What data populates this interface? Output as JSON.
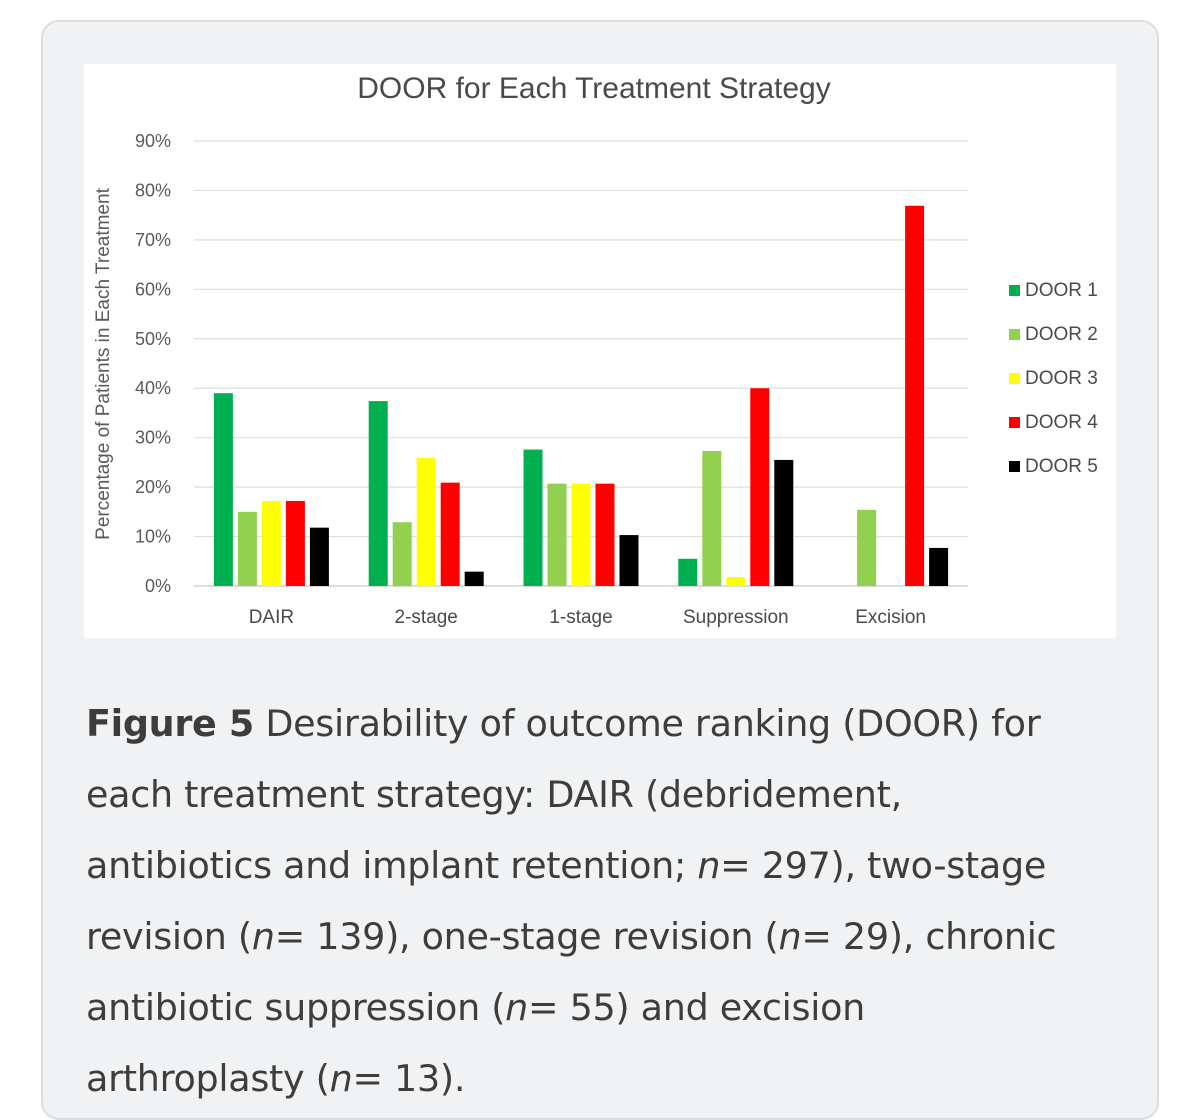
{
  "chart_data": {
    "type": "bar",
    "title": "DOOR for Each Treatment Strategy",
    "xlabel": "",
    "ylabel": "Percentage of Patients in Each Treatment",
    "ylim": [
      0,
      90
    ],
    "yticks": [
      "0%",
      "10%",
      "20%",
      "30%",
      "40%",
      "50%",
      "60%",
      "70%",
      "80%",
      "90%"
    ],
    "grid": true,
    "legend_position": "right",
    "categories": [
      "DAIR",
      "2-stage",
      "1-stage",
      "Suppression",
      "Excision"
    ],
    "series": [
      {
        "name": "DOOR 1",
        "color": "#00b050",
        "values": [
          39,
          37.4,
          27.6,
          5.5,
          0
        ]
      },
      {
        "name": "DOOR 2",
        "color": "#92d050",
        "values": [
          15,
          12.9,
          20.7,
          27.3,
          15.4
        ]
      },
      {
        "name": "DOOR 3",
        "color": "#ffff00",
        "values": [
          17.2,
          25.9,
          20.7,
          1.8,
          0
        ]
      },
      {
        "name": "DOOR 4",
        "color": "#ff0000",
        "values": [
          17.2,
          20.9,
          20.7,
          40,
          76.9
        ]
      },
      {
        "name": "DOOR 5",
        "color": "#000000",
        "values": [
          11.8,
          2.9,
          10.3,
          25.5,
          7.7
        ]
      }
    ]
  },
  "caption": {
    "figure_label": "Figure 5",
    "line1": "Desirability of outcome ranking (DOOR) for",
    "line2": "each treatment strategy: DAIR (debridement,",
    "line3_a": "antibiotics and implant retention; ",
    "line3_n": "n",
    "line3_b": "= 297), two-stage",
    "line4_a": "revision (",
    "line4_n1": "n",
    "line4_b": "= 139), one-stage revision (",
    "line4_n2": "n",
    "line4_c": "= 29), chronic",
    "line5_a": "antibiotic suppression (",
    "line5_n": "n",
    "line5_b": "= 55) and excision",
    "line6_a": "arthroplasty (",
    "line6_n": "n",
    "line6_b": "= 13)."
  }
}
